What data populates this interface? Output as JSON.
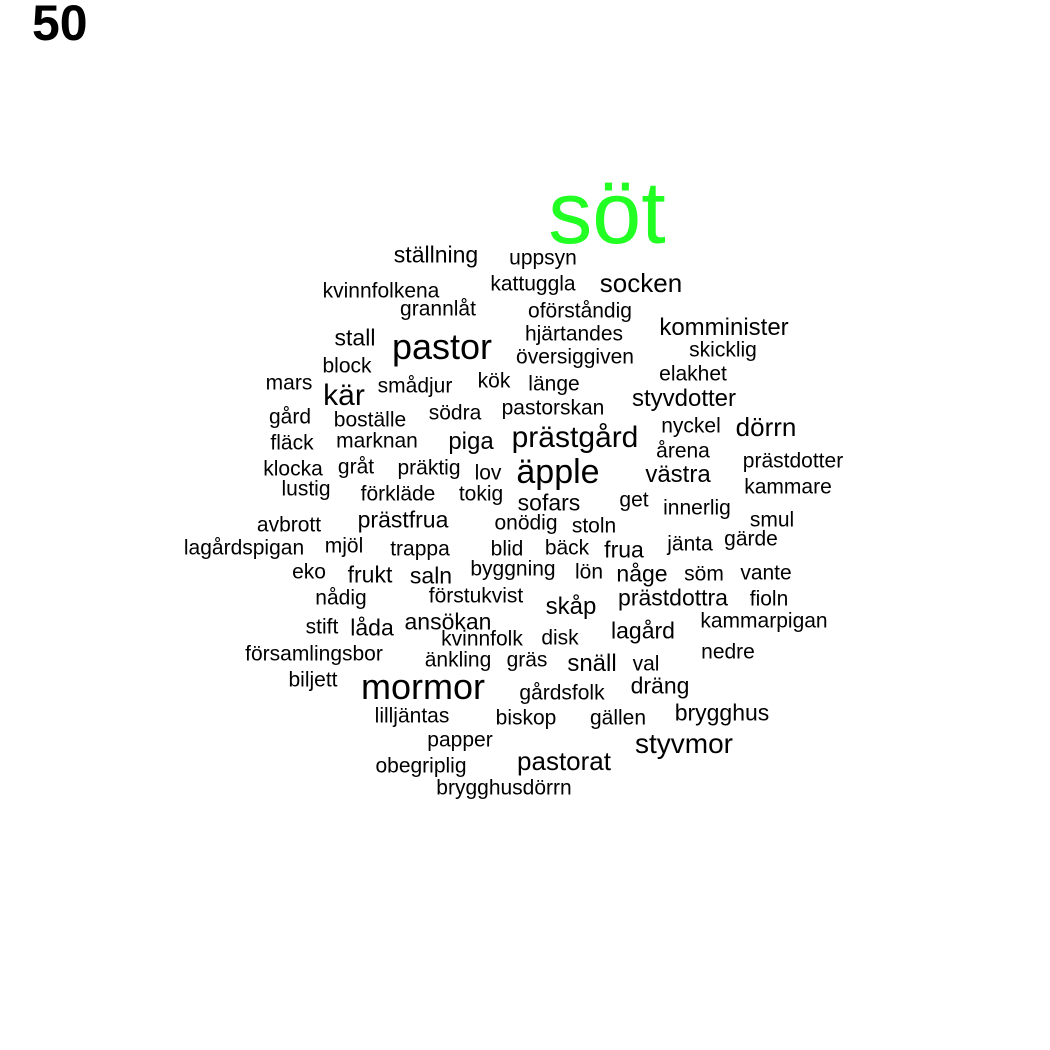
{
  "label": "50",
  "highlight_color": "#22ff22",
  "text_color": "#000000",
  "highlight_word": "söt",
  "words": [
    "söt",
    "ställning",
    "uppsyn",
    "kvinnfolkena",
    "kattuggla",
    "socken",
    "grannlåt",
    "oförståndig",
    "stall",
    "hjärtandes",
    "komminister",
    "pastor",
    "skicklig",
    "block",
    "översiggiven",
    "elakhet",
    "mars",
    "smådjur",
    "kök",
    "länge",
    "kär",
    "styvdotter",
    "gård",
    "pastorskan",
    "södra",
    "boställe",
    "nyckel",
    "dörrn",
    "fläck",
    "marknan",
    "piga",
    "prästgård",
    "årena",
    "klocka",
    "gråt",
    "präktig",
    "lov",
    "äpple",
    "västra",
    "prästdotter",
    "lustig",
    "förkläde",
    "tokig",
    "kammare",
    "sofars",
    "get",
    "innerlig",
    "avbrott",
    "prästfrua",
    "onödig",
    "stoln",
    "smul",
    "lagårdspigan",
    "mjöl",
    "trappa",
    "blid",
    "bäck",
    "frua",
    "jänta",
    "gärde",
    "eko",
    "frukt",
    "saln",
    "byggning",
    "lön",
    "någe",
    "söm",
    "vante",
    "nådig",
    "förstukvist",
    "prästdottra",
    "fioln",
    "skåp",
    "stift",
    "låda",
    "ansökan",
    "kammarpigan",
    "lagård",
    "kvinnfolk",
    "disk",
    "församlingsbor",
    "änkling",
    "gräs",
    "snäll",
    "val",
    "nedre",
    "biljett",
    "mormor",
    "dräng",
    "gårdsfolk",
    "brygghus",
    "lilljäntas",
    "biskop",
    "gällen",
    "papper",
    "styvmor",
    "obegriplig",
    "pastorat",
    "brygghusdörrn"
  ]
}
